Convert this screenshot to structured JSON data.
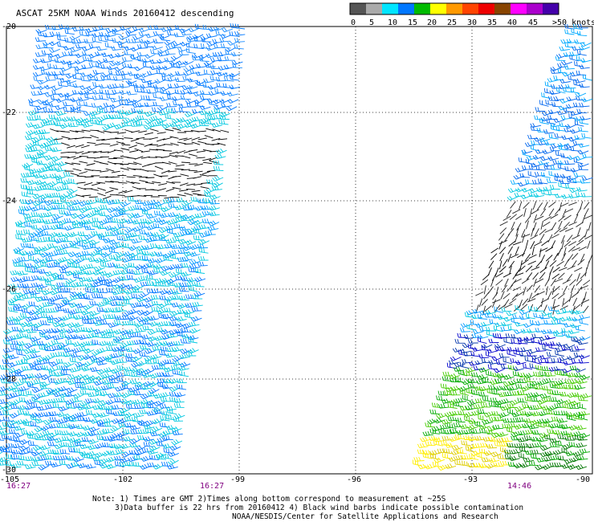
{
  "title": "ASCAT 25KM NOAA Winds 20160412 descending",
  "legend": {
    "ticks": [
      "0",
      "5",
      "10",
      "15",
      "20",
      "25",
      "30",
      "35",
      "40",
      "45",
      ">50 knots"
    ],
    "colors": [
      "#555555",
      "#aaaaaa",
      "#00e5ff",
      "#0077ff",
      "#00bb00",
      "#ffff00",
      "#ff9900",
      "#ff4400",
      "#ee0000",
      "#884400",
      "#ff00ff",
      "#aa00cc",
      "#4400aa"
    ]
  },
  "lat_labels": [
    "-20",
    "-22",
    "-24",
    "-26",
    "-28",
    "-30"
  ],
  "lon_labels": [
    "-105",
    "-102",
    "-99",
    "-96",
    "-93",
    "-90"
  ],
  "times": [
    "16:27",
    "16:27",
    "14:46"
  ],
  "notes": [
    "Note: 1) Times are GMT 2)Times along bottom correspond to measurement at ~25S",
    "3)Data buffer is 22 hrs from 20160412 4) Black wind barbs indicate possible contamination",
    "NOAA/NESDIS/Center for Satellite Applications and Research"
  ]
}
